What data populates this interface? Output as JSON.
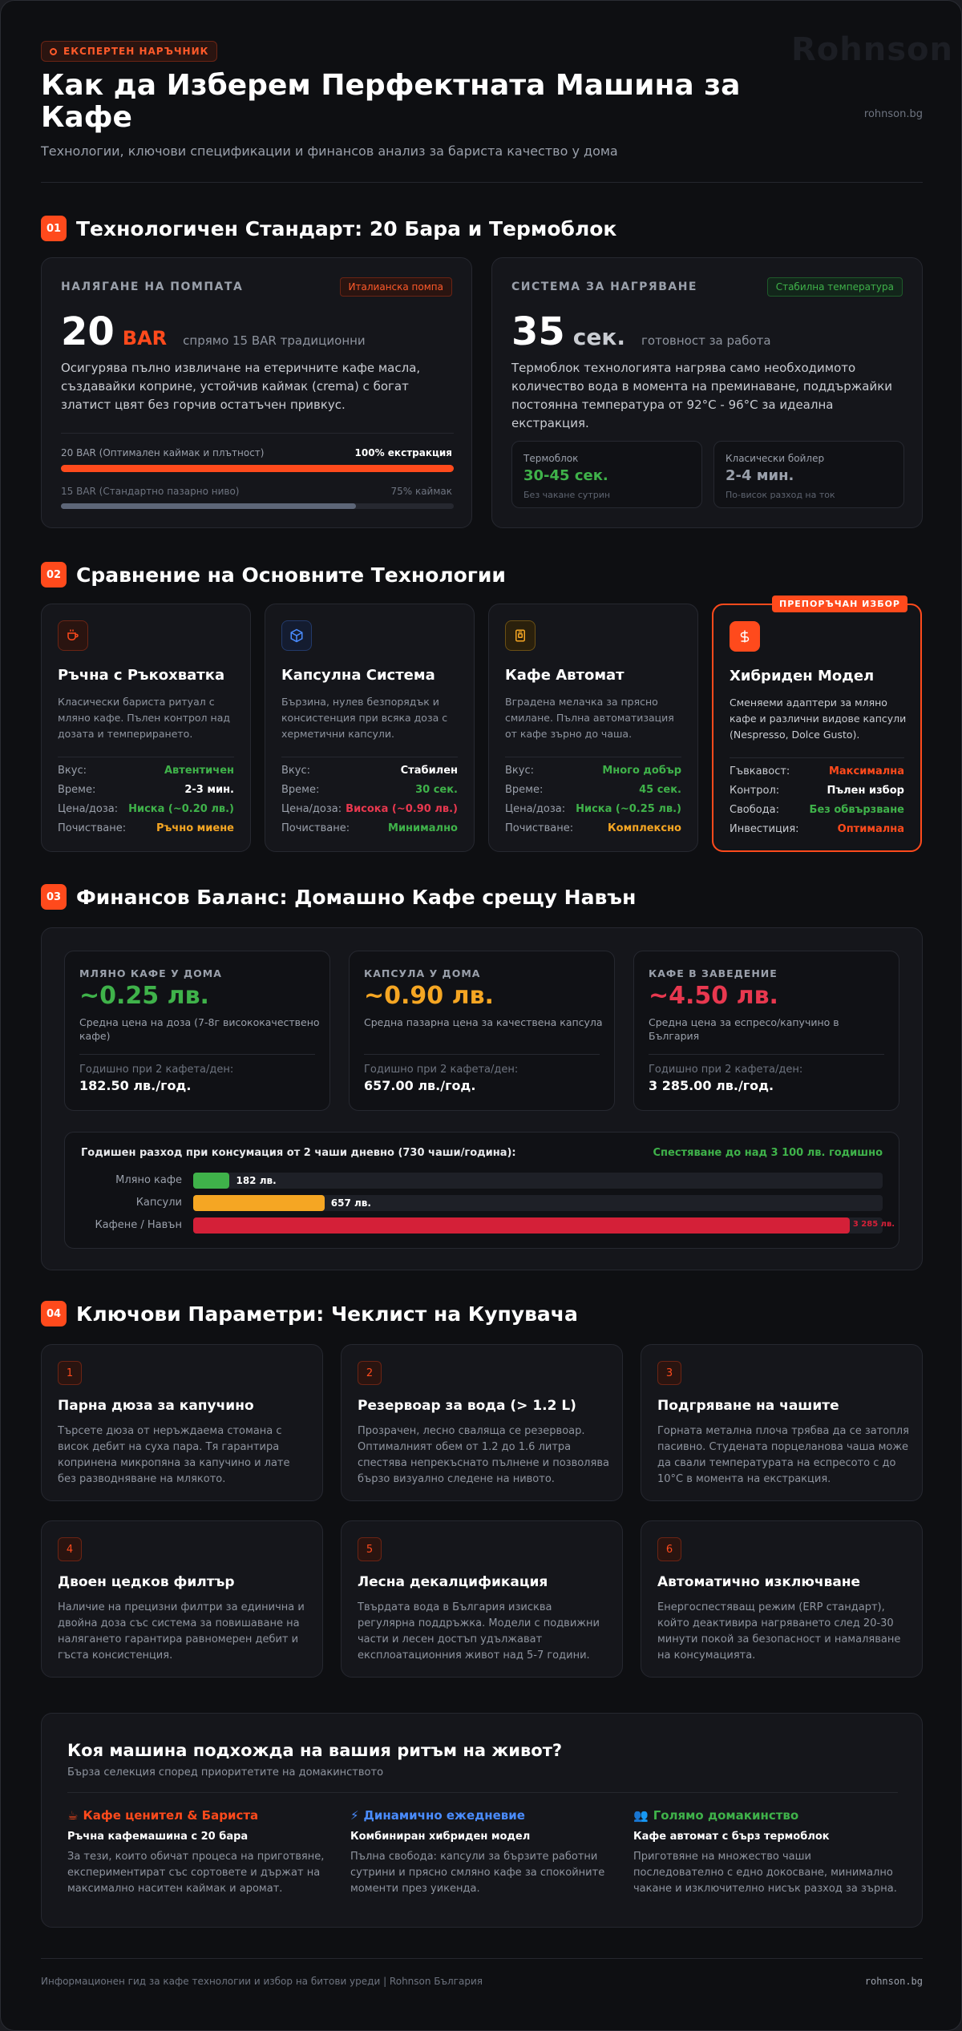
{
  "header": {
    "badge": "ЕКСПЕРТЕН НАРЪЧНИК",
    "title": "Как да Изберем Перфектната Машина за Кафе",
    "subtitle": "Технологии, ключови спецификации и финансов анализ за бариста качество у дома",
    "brand_ghost": "Rohnson",
    "brand_url": "rohnson.bg"
  },
  "section1": {
    "num": "01",
    "title": "Технологичен Стандарт: 20 Бара и Термоблок",
    "pump": {
      "caption": "НАЛЯГАНЕ НА ПОМПАТА",
      "tag": "Италианска помпа",
      "value": "20",
      "unit": "BAR",
      "note": "спрямо 15 BAR традиционни",
      "text": "Осигурява пълно извличане на етеричните кафе масла, създавайки коприне, устойчив каймак (crema) с богат златист цвят без горчив остатъчен привкус.",
      "bars": [
        {
          "label": "20 BAR (Оптимален каймак и плътност)",
          "value_label": "100% екстракция",
          "value": 100,
          "color": "#ff4a1c"
        },
        {
          "label": "15 BAR (Стандартно пазарно ниво)",
          "value_label": "75% каймак",
          "value": 75,
          "color": "#5d6678"
        }
      ]
    },
    "heating": {
      "caption": "СИСТЕМА ЗА НАГРЯВАНЕ",
      "tag": "Стабилна температура",
      "value": "35",
      "unit": "сек.",
      "note": "готовност за работа",
      "text": "Термоблок технологията нагрява само необходимото количество вода в момента на преминаване, поддържайки постоянна температура от 92°C - 96°C за идеална екстракция.",
      "options": [
        {
          "name": "Термоблок",
          "value": "30-45 сек.",
          "note": "Без чакане сутрин",
          "color": "#3fb24a"
        },
        {
          "name": "Класически бойлер",
          "value": "2-4 мин.",
          "note": "По-висок разход на ток",
          "color": "#9aa0ab"
        }
      ]
    }
  },
  "section2": {
    "num": "02",
    "title": "Сравнение на Основните Технологии",
    "recommended_badge": "ПРЕПОРЪЧАН ИЗБОР",
    "cards": [
      {
        "icon": "cup-icon",
        "name": "Ръчна с Ръкохватка",
        "desc": "Класически бариста ритуал с мляно кафе. Пълен контрол над дозата и темперирането.",
        "rows": [
          {
            "k": "Вкус:",
            "v": "Автентичен",
            "c": "#3fb24a"
          },
          {
            "k": "Време:",
            "v": "2-3 мин.",
            "c": "#ffffff"
          },
          {
            "k": "Цена/доза:",
            "v": "Ниска (~0.20 лв.)",
            "c": "#3fb24a"
          },
          {
            "k": "Почистване:",
            "v": "Ръчно миене",
            "c": "#f5a623"
          }
        ]
      },
      {
        "icon": "cube-icon",
        "name": "Капсулна Система",
        "desc": "Бързина, нулев безпорядък и консистенция при всяка доза с херметични капсули.",
        "rows": [
          {
            "k": "Вкус:",
            "v": "Стабилен",
            "c": "#ffffff"
          },
          {
            "k": "Време:",
            "v": "30 сек.",
            "c": "#3fb24a"
          },
          {
            "k": "Цена/доза:",
            "v": "Висока (~0.90 лв.)",
            "c": "#e8384f"
          },
          {
            "k": "Почистване:",
            "v": "Минимално",
            "c": "#3fb24a"
          }
        ]
      },
      {
        "icon": "machine-icon",
        "name": "Кафе Автомат",
        "desc": "Вградена мелачка за прясно смилане. Пълна автоматизация от кафе зърно до чаша.",
        "rows": [
          {
            "k": "Вкус:",
            "v": "Много добър",
            "c": "#3fb24a"
          },
          {
            "k": "Време:",
            "v": "45 сек.",
            "c": "#3fb24a"
          },
          {
            "k": "Цена/доза:",
            "v": "Ниска (~0.25 лв.)",
            "c": "#3fb24a"
          },
          {
            "k": "Почистване:",
            "v": "Комплексно",
            "c": "#f5a623"
          }
        ]
      },
      {
        "icon": "dollar-icon",
        "name": "Хибриден Модел",
        "desc": "Сменяеми адаптери за мляно кафе и различни видове капсули (Nespresso, Dolce Gusto).",
        "rows": [
          {
            "k": "Гъвкавост:",
            "v": "Максимална",
            "c": "#ff4a1c"
          },
          {
            "k": "Контрол:",
            "v": "Пълен избор",
            "c": "#ffffff"
          },
          {
            "k": "Свобода:",
            "v": "Без обвързване",
            "c": "#3fb24a"
          },
          {
            "k": "Инвестиция:",
            "v": "Оптимална",
            "c": "#ff4a1c"
          }
        ]
      }
    ]
  },
  "section3": {
    "num": "03",
    "title": "Финансов Баланс: Домашно Кафе срещу Навън",
    "cards": [
      {
        "caption": "МЛЯНО КАФЕ У ДОМА",
        "value": "~0.25 лв.",
        "color": "#3fb24a",
        "desc": "Средна цена на доза (7-8г висококачествено кафе)",
        "ylabel": "Годишно при 2 кафета/ден:",
        "yvalue": "182.50 лв./год."
      },
      {
        "caption": "КАПСУЛА У ДОМА",
        "value": "~0.90 лв.",
        "color": "#f5a623",
        "desc": "Средна пазарна цена за качествена капсула",
        "ylabel": "Годишно при 2 кафета/ден:",
        "yvalue": "657.00 лв./год."
      },
      {
        "caption": "КАФЕ В ЗАВЕДЕНИЕ",
        "value": "~4.50 лв.",
        "color": "#e8384f",
        "desc": "Средна цена за еспресо/капучино в България",
        "ylabel": "Годишно при 2 кафета/ден:",
        "yvalue": "3 285.00 лв./год."
      }
    ],
    "chart_title": "Годишен разход при консумация от 2 чаши дневно (730 чаши/година):",
    "chart_savings": "Спестяване до над 3 100 лв. годишно",
    "chart_data": {
      "type": "bar",
      "categories": [
        "Мляно кафе",
        "Капсули",
        "Кафене / Навън"
      ],
      "values": [
        182.5,
        657,
        3285
      ],
      "value_labels": [
        "182 лв.",
        "657 лв.",
        "3 285 лв."
      ],
      "colors": [
        "#3fb24a",
        "#f5a623",
        "#d42038"
      ],
      "xlim": [
        0,
        3450
      ]
    }
  },
  "section4": {
    "num": "04",
    "title": "Ключови Параметри: Чеклист на Купувача",
    "items": [
      {
        "num": "1",
        "title": "Парна дюза за капучино",
        "desc": "Търсете дюза от неръждаема стомана с висок дебит на суха пара. Тя гарантира копринена микропяна за капучино и лате без разводняване на млякото."
      },
      {
        "num": "2",
        "title": "Резервоар за вода (> 1.2 L)",
        "desc": "Прозрачен, лесно сваляща се резервоар. Оптималният обем от 1.2 до 1.6 литра спестява непрекъснато пълнене и позволява бързо визуално следене на нивото."
      },
      {
        "num": "3",
        "title": "Подгряване на чашите",
        "desc": "Горната метална плоча трябва да се затопля пасивно. Студената порцеланова чаша може да свали температурата на еспресото с до 10°C в момента на екстракция."
      },
      {
        "num": "4",
        "title": "Двоен цедков филтър",
        "desc": "Наличие на прецизни филтри за единична и двойна доза със система за повишаване на налягането гарантира равномерен дебит и гъста консистенция."
      },
      {
        "num": "5",
        "title": "Лесна декалцификация",
        "desc": "Твърдата вода в България изисква регулярна поддръжка. Модели с подвижни части и лесен достъп удължават експлоатационния живот над 5-7 години."
      },
      {
        "num": "6",
        "title": "Автоматично изключване",
        "desc": "Енергоспестяващ режим (ERP стандарт), който деактивира нагряването след 20-30 минути покой за безопасност и намаляване на консумацията."
      }
    ]
  },
  "rhythm": {
    "title": "Коя машина подхожда на вашия ритъм на живот?",
    "subtitle": "Бърза селекция според приоритетите на домакинството",
    "cols": [
      {
        "icon": "coffee-icon",
        "glyph": "☕",
        "head": "Кафе ценител & Бариста",
        "color": "#ff4a1c",
        "sub": "Ръчна кафемашина с 20 бара",
        "desc": "За тези, които обичат процеса на приготвяне, експериментират със сортовете и държат на максимално наситен каймак и аромат."
      },
      {
        "icon": "lightning-icon",
        "glyph": "⚡",
        "head": "Динамично ежедневие",
        "color": "#4a8cff",
        "sub": "Комбиниран хибриден модел",
        "desc": "Пълна свобода: капсули за бързите работни сутрини и прясно смляно кафе за спокойните моменти през уикенда."
      },
      {
        "icon": "people-icon",
        "glyph": "👥",
        "head": "Голямо домакинство",
        "color": "#3fb24a",
        "sub": "Кафе автомат с бърз термоблок",
        "desc": "Приготвяне на множество чаши последователно с едно докосване, минимално чакане и изключително нисък разход за зърна."
      }
    ]
  },
  "footer": {
    "left": "Информационен гид за кафе технологии и избор на битови уреди | Rohnson България",
    "right": "rohnson.bg"
  }
}
